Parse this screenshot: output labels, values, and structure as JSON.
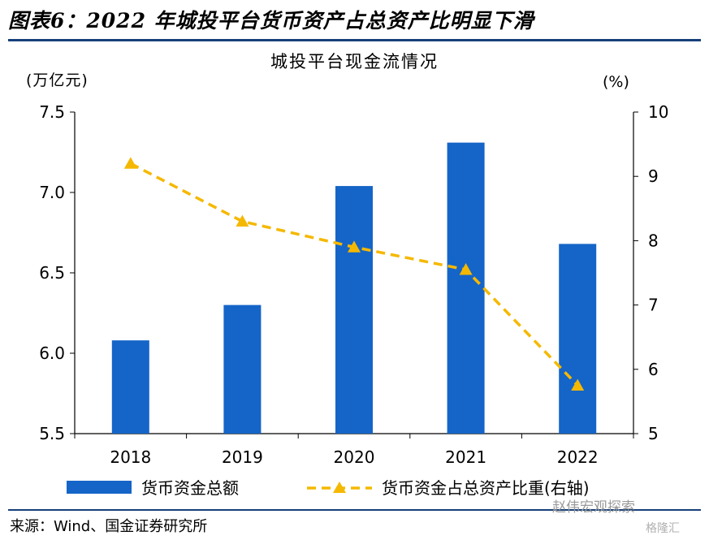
{
  "header": {
    "title": "图表6：2022 年城投平台货币资产占总资产比明显下滑"
  },
  "chart_data": {
    "type": "bar",
    "title": "城投平台现金流情况",
    "categories": [
      "2018",
      "2019",
      "2020",
      "2021",
      "2022"
    ],
    "series": [
      {
        "name": "货币资金总额",
        "type": "bar",
        "axis": "left",
        "values": [
          6.08,
          6.3,
          7.04,
          7.31,
          6.68
        ],
        "color": "#1565c8"
      },
      {
        "name": "货币资金占总资产比重(右轴)",
        "type": "line",
        "axis": "right",
        "values": [
          9.2,
          8.3,
          7.9,
          7.55,
          5.75
        ],
        "color": "#f5b800",
        "style": "dashed",
        "marker": "triangle"
      }
    ],
    "y_left": {
      "unit": "(万亿元)",
      "range": [
        5.5,
        7.5
      ],
      "ticks": [
        "5.5",
        "6.0",
        "6.5",
        "7.0",
        "7.5"
      ]
    },
    "y_right": {
      "unit": "(%)",
      "range": [
        5,
        10
      ],
      "ticks": [
        "5",
        "6",
        "7",
        "8",
        "9",
        "10"
      ]
    },
    "grid": false,
    "legend_position": "bottom"
  },
  "footer": {
    "source": "来源：Wind、国金证券研究所",
    "watermark": "赵伟宏观探索",
    "watermark_small": "格隆汇"
  }
}
